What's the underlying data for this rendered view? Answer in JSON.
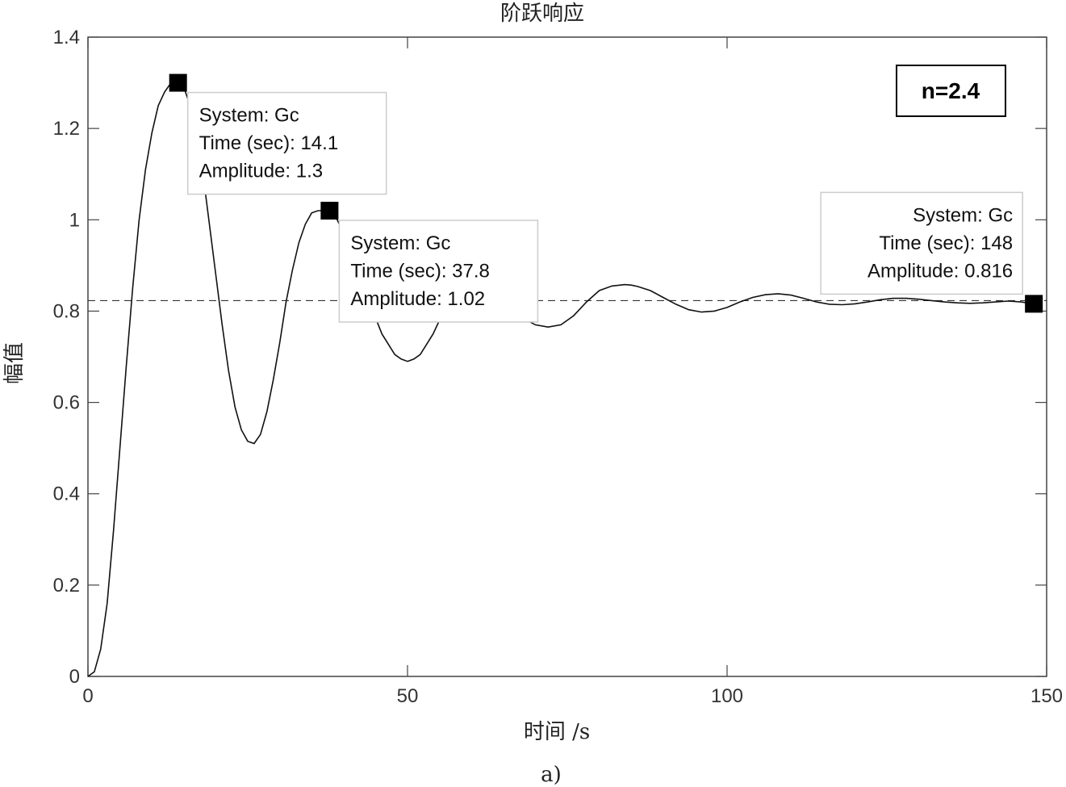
{
  "chart_data": {
    "type": "line",
    "title": "阶跃响应",
    "xlabel": "时间 /s",
    "ylabel": "幅值",
    "caption": "a)",
    "xlim": [
      0,
      150
    ],
    "ylim": [
      0,
      1.4
    ],
    "xticks": [
      0,
      50,
      100,
      150
    ],
    "yticks": [
      0,
      0.2,
      0.4,
      0.6,
      0.8,
      1,
      1.2,
      1.4
    ],
    "xtick_labels": [
      "0",
      "50",
      "100",
      "150"
    ],
    "ytick_labels": [
      "0",
      "0.2",
      "0.4",
      "0.6",
      "0.8",
      "1",
      "1.2",
      "1.4"
    ],
    "grid": false,
    "reference_line": {
      "y": 0.823,
      "style": "dashed"
    },
    "annotation_badge": "n=2.4",
    "series": [
      {
        "x": [
          0,
          1,
          2,
          3,
          4,
          5,
          6,
          7,
          8,
          9,
          10,
          11,
          12,
          13,
          14.1,
          15,
          16,
          17,
          18,
          19,
          20,
          21,
          22,
          23,
          24,
          25,
          26,
          27,
          28,
          29,
          30,
          31,
          32,
          33,
          34,
          35,
          36,
          37.8,
          39,
          40,
          42,
          44,
          46,
          48,
          49,
          50,
          51,
          52,
          54,
          56,
          58,
          60,
          62,
          64,
          66,
          68,
          70,
          72,
          74,
          76,
          78,
          80,
          82,
          84,
          85,
          86,
          88,
          90,
          92,
          94,
          96,
          98,
          100,
          102,
          104,
          106,
          108,
          110,
          112,
          114,
          116,
          118,
          120,
          122,
          124,
          126,
          128,
          130,
          132,
          134,
          136,
          138,
          140,
          142,
          144,
          146,
          148
        ],
        "y": [
          0,
          0.01,
          0.06,
          0.16,
          0.32,
          0.5,
          0.68,
          0.85,
          1.0,
          1.11,
          1.19,
          1.25,
          1.28,
          1.3,
          1.3,
          1.29,
          1.25,
          1.19,
          1.1,
          0.99,
          0.88,
          0.77,
          0.67,
          0.59,
          0.54,
          0.515,
          0.51,
          0.53,
          0.58,
          0.65,
          0.73,
          0.82,
          0.89,
          0.95,
          0.99,
          1.015,
          1.02,
          1.02,
          1.0,
          0.97,
          0.9,
          0.82,
          0.75,
          0.705,
          0.695,
          0.69,
          0.695,
          0.705,
          0.75,
          0.81,
          0.85,
          0.87,
          0.86,
          0.84,
          0.81,
          0.785,
          0.77,
          0.765,
          0.77,
          0.79,
          0.82,
          0.845,
          0.855,
          0.858,
          0.857,
          0.854,
          0.845,
          0.83,
          0.815,
          0.803,
          0.798,
          0.8,
          0.808,
          0.82,
          0.83,
          0.836,
          0.838,
          0.835,
          0.828,
          0.82,
          0.815,
          0.814,
          0.816,
          0.82,
          0.825,
          0.828,
          0.828,
          0.826,
          0.823,
          0.82,
          0.818,
          0.817,
          0.818,
          0.82,
          0.822,
          0.82,
          0.816
        ]
      }
    ],
    "datatips": [
      {
        "x": 14.1,
        "y": 1.3,
        "lines": [
          "System: Gc",
          "Time (sec): 14.1",
          "Amplitude: 1.3"
        ]
      },
      {
        "x": 37.8,
        "y": 1.02,
        "lines": [
          "System: Gc",
          "Time (sec): 37.8",
          "Amplitude: 1.02"
        ]
      },
      {
        "x": 148,
        "y": 0.816,
        "lines": [
          "System: Gc",
          "Time (sec): 148",
          "Amplitude: 0.816"
        ]
      }
    ]
  }
}
